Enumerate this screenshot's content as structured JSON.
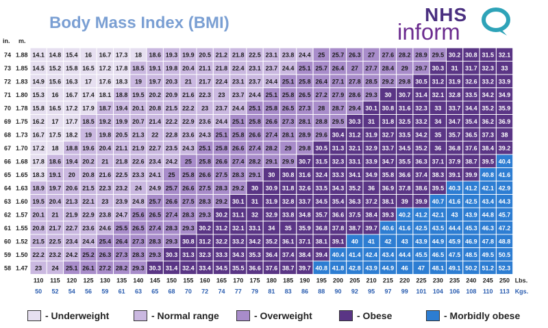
{
  "title": "Body Mass Index (BMI)",
  "logo": {
    "line1": "NHS",
    "line2": "inform"
  },
  "colors": {
    "underweight": "#e6dff0",
    "normal": "#cab8e0",
    "overweight": "#a88cca",
    "obese": "#5a3585",
    "morbid": "#2d7dd2"
  },
  "chart_data": {
    "type": "heatmap",
    "title": "Body Mass Index (BMI)",
    "height_unit_in": "in.",
    "height_unit_m": "m.",
    "weight_unit_lbs": "Lbs.",
    "weight_unit_kgs": "Kgs.",
    "heights_in": [
      74,
      73,
      72,
      71,
      70,
      69,
      68,
      67,
      66,
      65,
      64,
      63,
      62,
      61,
      60,
      59,
      58
    ],
    "heights_m": [
      "1.88",
      "1.85",
      "1.83",
      "1.80",
      "1.78",
      "1.75",
      "1.73",
      "1.70",
      "1.68",
      "1.65",
      "1.63",
      "1.60",
      "1.57",
      "1.55",
      "1.52",
      "1.50",
      "1.47"
    ],
    "weights_lbs": [
      110,
      115,
      120,
      125,
      130,
      135,
      140,
      145,
      150,
      155,
      160,
      165,
      170,
      175,
      180,
      185,
      190,
      195,
      200,
      205,
      210,
      215,
      220,
      225,
      230,
      235,
      240,
      245,
      250
    ],
    "weights_kgs": [
      50,
      52,
      54,
      56,
      59,
      61,
      63,
      65,
      68,
      70,
      72,
      74,
      77,
      79,
      81,
      83,
      86,
      88,
      90,
      92,
      95,
      97,
      99,
      101,
      104,
      106,
      108,
      110,
      113
    ],
    "bmi": [
      [
        14.1,
        14.8,
        15.4,
        16,
        16.7,
        17.3,
        18,
        18.6,
        19.3,
        19.9,
        20.5,
        21.2,
        21.8,
        22.5,
        23.1,
        23.8,
        24.4,
        25,
        25.7,
        26.3,
        27,
        27.6,
        28.2,
        28.9,
        29.5,
        30.2,
        30.8,
        31.5,
        32.1
      ],
      [
        14.5,
        15.2,
        15.8,
        16.5,
        17.2,
        17.8,
        18.5,
        19.1,
        19.8,
        20.4,
        21.1,
        21.8,
        22.4,
        23.1,
        23.7,
        24.4,
        25.1,
        25.7,
        26.4,
        27,
        27.7,
        28.4,
        29,
        29.7,
        30.3,
        31,
        31.7,
        32.3,
        33
      ],
      [
        14.9,
        15.6,
        16.3,
        17,
        17.6,
        18.3,
        19,
        19.7,
        20.3,
        21,
        21.7,
        22.4,
        23.1,
        23.7,
        24.4,
        25.1,
        25.8,
        26.4,
        27.1,
        27.8,
        28.5,
        29.2,
        29.8,
        30.5,
        31.2,
        31.9,
        32.6,
        33.2,
        33.9
      ],
      [
        15.3,
        16,
        16.7,
        17.4,
        18.1,
        18.8,
        19.5,
        20.2,
        20.9,
        21.6,
        22.3,
        23,
        23.7,
        24.4,
        25.1,
        25.8,
        26.5,
        27.2,
        27.9,
        28.6,
        29.3,
        30,
        30.7,
        31.4,
        32.1,
        32.8,
        33.5,
        34.2,
        34.9
      ],
      [
        15.8,
        16.5,
        17.2,
        17.9,
        18.7,
        19.4,
        20.1,
        20.8,
        21.5,
        22.2,
        23,
        23.7,
        24.4,
        25.1,
        25.8,
        26.5,
        27.3,
        28,
        28.7,
        29.4,
        30.1,
        30.8,
        31.6,
        32.3,
        33,
        33.7,
        34.4,
        35.2,
        35.9
      ],
      [
        16.2,
        17,
        17.7,
        18.5,
        19.2,
        19.9,
        20.7,
        21.4,
        22.2,
        22.9,
        23.6,
        24.4,
        25.1,
        25.8,
        26.6,
        27.3,
        28.1,
        28.8,
        29.5,
        30.3,
        31,
        31.8,
        32.5,
        33.2,
        34,
        34.7,
        35.4,
        36.2,
        36.9
      ],
      [
        16.7,
        17.5,
        18.2,
        19,
        19.8,
        20.5,
        21.3,
        22,
        22.8,
        23.6,
        24.3,
        25.1,
        25.8,
        26.6,
        27.4,
        28.1,
        28.9,
        29.6,
        30.4,
        31.2,
        31.9,
        32.7,
        33.5,
        34.2,
        35,
        35.7,
        36.5,
        37.3,
        38
      ],
      [
        17.2,
        18,
        18.8,
        19.6,
        20.4,
        21.1,
        21.9,
        22.7,
        23.5,
        24.3,
        25.1,
        25.8,
        26.6,
        27.4,
        28.2,
        29,
        29.8,
        30.5,
        31.3,
        32.1,
        32.9,
        33.7,
        34.5,
        35.2,
        36,
        36.8,
        37.6,
        38.4,
        39.2
      ],
      [
        17.8,
        18.6,
        19.4,
        20.2,
        21,
        21.8,
        22.6,
        23.4,
        24.2,
        25,
        25.8,
        26.6,
        27.4,
        28.2,
        29.1,
        29.9,
        30.7,
        31.5,
        32.3,
        33.1,
        33.9,
        34.7,
        35.5,
        36.3,
        37.1,
        37.9,
        38.7,
        39.5,
        40.4
      ],
      [
        18.3,
        19.1,
        20,
        20.8,
        21.6,
        22.5,
        23.3,
        24.1,
        25,
        25.8,
        26.6,
        27.5,
        28.3,
        29.1,
        30,
        30.8,
        31.6,
        32.4,
        33.3,
        34.1,
        34.9,
        35.8,
        36.6,
        37.4,
        38.3,
        39.1,
        39.9,
        40.8,
        41.6
      ],
      [
        18.9,
        19.7,
        20.6,
        21.5,
        22.3,
        23.2,
        24,
        24.9,
        25.7,
        26.6,
        27.5,
        28.3,
        29.2,
        30,
        30.9,
        31.8,
        32.6,
        33.5,
        34.3,
        35.2,
        36,
        36.9,
        37.8,
        38.6,
        39.5,
        40.3,
        41.2,
        42.1,
        42.9
      ],
      [
        19.5,
        20.4,
        21.3,
        22.1,
        23,
        23.9,
        24.8,
        25.7,
        26.6,
        27.5,
        28.3,
        29.2,
        30.1,
        31,
        31.9,
        32.8,
        33.7,
        34.5,
        35.4,
        36.3,
        37.2,
        38.1,
        39,
        39.9,
        40.7,
        41.6,
        42.5,
        43.4,
        44.3
      ],
      [
        20.1,
        21,
        21.9,
        22.9,
        23.8,
        24.7,
        25.6,
        26.5,
        27.4,
        28.3,
        29.3,
        30.2,
        31.1,
        32,
        32.9,
        33.8,
        34.8,
        35.7,
        36.6,
        37.5,
        38.4,
        39.3,
        40.2,
        41.2,
        42.1,
        43,
        43.9,
        44.8,
        45.7
      ],
      [
        20.8,
        21.7,
        22.7,
        23.6,
        24.6,
        25.5,
        26.5,
        27.4,
        28.3,
        29.3,
        30.2,
        31.2,
        32.1,
        33.1,
        34,
        35,
        35.9,
        36.8,
        37.8,
        38.7,
        39.7,
        40.6,
        41.6,
        42.5,
        43.5,
        44.4,
        45.3,
        46.3,
        47.2
      ],
      [
        21.5,
        22.5,
        23.4,
        24.4,
        25.4,
        26.4,
        27.3,
        28.3,
        29.3,
        30.8,
        31.2,
        32.2,
        33.2,
        34.2,
        35.2,
        36.1,
        37.1,
        38.1,
        39.1,
        40,
        41,
        42,
        43,
        43.9,
        44.9,
        45.9,
        46.9,
        47.8,
        48.8
      ],
      [
        22.2,
        23.2,
        24.2,
        25.2,
        26.3,
        27.3,
        28.3,
        29.3,
        30.3,
        31.3,
        32.3,
        33.3,
        34.3,
        35.3,
        36.4,
        37.4,
        38.4,
        39.4,
        40.4,
        41.4,
        42.4,
        43.4,
        44.4,
        45.5,
        46.5,
        47.5,
        48.5,
        49.5,
        50.5
      ],
      [
        23,
        24,
        25.1,
        26.1,
        27.2,
        28.2,
        29.3,
        30.3,
        31.4,
        32.4,
        33.4,
        34.5,
        35.5,
        36.6,
        37.6,
        38.7,
        39.7,
        40.8,
        41.8,
        42.8,
        43.9,
        44.9,
        46,
        47,
        48.1,
        49.1,
        50.2,
        51.2,
        52.3
      ]
    ],
    "legend": [
      {
        "key": "underweight",
        "label": "- Underweight"
      },
      {
        "key": "normal",
        "label": "- Normal range"
      },
      {
        "key": "overweight",
        "label": "- Overweight"
      },
      {
        "key": "obese",
        "label": "- Obese"
      },
      {
        "key": "morbid",
        "label": "- Morbidly obese"
      }
    ]
  }
}
